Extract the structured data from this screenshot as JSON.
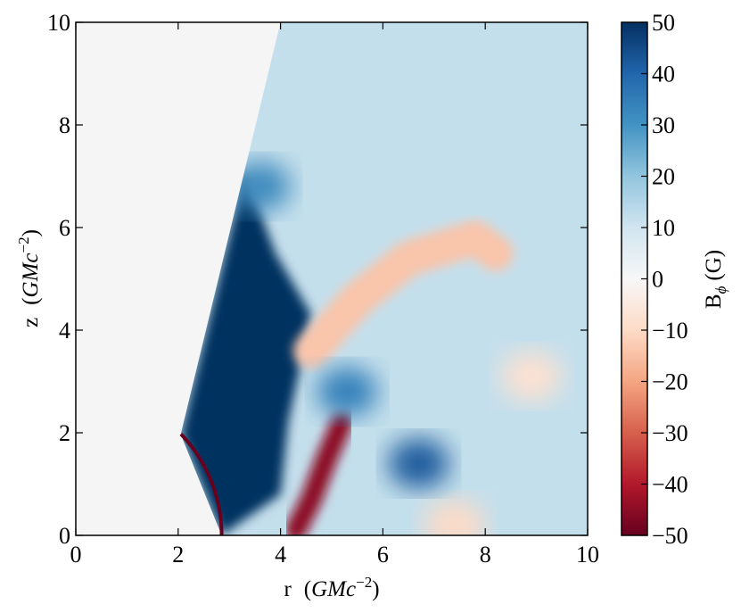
{
  "chart_data": {
    "type": "heatmap",
    "title": "",
    "xlabel": {
      "prefix": "r",
      "unit": "GMc",
      "exponent": "−2"
    },
    "ylabel": {
      "prefix": "z",
      "unit": "GMc",
      "exponent": "−2"
    },
    "xlim": [
      0,
      10
    ],
    "ylim": [
      0,
      10
    ],
    "x_ticks": [
      0,
      2,
      4,
      6,
      8,
      10
    ],
    "y_ticks": [
      0,
      2,
      4,
      6,
      8,
      10
    ],
    "x_tick_labels": [
      "0",
      "2",
      "4",
      "6",
      "8",
      "10"
    ],
    "y_tick_labels": [
      "0",
      "2",
      "4",
      "6",
      "8",
      "10"
    ],
    "grid": false,
    "colorbar": {
      "label_main": "B",
      "label_sub": "ϕ",
      "label_unit": "(G)",
      "range": [
        -50,
        50
      ],
      "ticks": [
        50,
        40,
        30,
        20,
        10,
        0,
        -10,
        -20,
        -30,
        -40,
        -50
      ],
      "tick_labels": [
        "50",
        "40",
        "30",
        "20",
        "10",
        "0",
        "−10",
        "−20",
        "−30",
        "−40",
        "−50"
      ],
      "colormap": "RdBu",
      "colors": [
        "#67001f",
        "#b2182b",
        "#d6604d",
        "#f4a582",
        "#fddbc7",
        "#f7f7f7",
        "#d1e5f0",
        "#92c5de",
        "#4393c3",
        "#2166ac",
        "#053061"
      ]
    },
    "masked_color": "#f5f5f5",
    "excised_region": {
      "description": "no-data wedge",
      "polygon_points": [
        [
          0,
          0
        ],
        [
          0,
          10
        ],
        [
          4.0,
          10
        ],
        [
          2.05,
          1.97
        ],
        [
          2.85,
          0
        ]
      ]
    },
    "features": [
      {
        "region": "jet",
        "polygon_points": [
          [
            2.05,
            1.97
          ],
          [
            4.0,
            10
          ],
          [
            10,
            10
          ],
          [
            10,
            0
          ],
          [
            2.85,
            0
          ]
        ],
        "approx_value": 12
      },
      {
        "region": "strong-positive-core",
        "polygon_points": [
          [
            2.05,
            1.97
          ],
          [
            3.3,
            7.1
          ],
          [
            3.9,
            5.5
          ],
          [
            4.6,
            4.3
          ],
          [
            4.15,
            2.2
          ],
          [
            4.0,
            0.8
          ],
          [
            2.85,
            0
          ]
        ],
        "approx_value": 50
      },
      {
        "region": "positive-field-upper-left",
        "center": [
          3.6,
          6.8
        ],
        "approx_value": 32
      },
      {
        "region": "negative-arm",
        "path": [
          [
            4.6,
            3.6
          ],
          [
            5.5,
            4.6
          ],
          [
            6.5,
            5.4
          ],
          [
            7.8,
            5.8
          ],
          [
            8.2,
            5.5
          ]
        ],
        "approx_value": -14
      },
      {
        "region": "negative-right-lobe",
        "center": [
          8.9,
          3.1
        ],
        "approx_value": -8
      },
      {
        "region": "strong-negative-filament",
        "path": [
          [
            4.3,
            0.1
          ],
          [
            4.6,
            0.7
          ],
          [
            4.9,
            1.5
          ],
          [
            5.2,
            2.2
          ]
        ],
        "approx_value": -45
      },
      {
        "region": "negative-blob-bottom",
        "center": [
          7.4,
          0.2
        ],
        "approx_value": -10
      },
      {
        "region": "positive-blob",
        "center": [
          6.7,
          1.4
        ],
        "approx_value": 42
      },
      {
        "region": "positive-band",
        "center": [
          5.3,
          2.8
        ],
        "approx_value": 34
      },
      {
        "region": "boundary-ring",
        "center": [
          0,
          0
        ],
        "radius": 2.85,
        "approx_value": -50
      }
    ]
  }
}
